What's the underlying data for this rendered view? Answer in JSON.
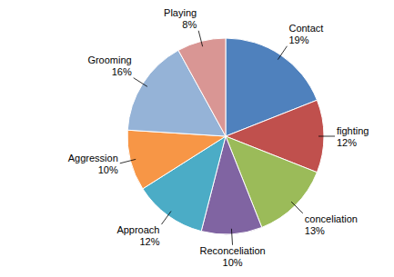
{
  "chart_data": {
    "type": "pie",
    "categories": [
      "Contact",
      "fighting",
      "conceliation",
      "Reconceliation",
      "Approach",
      "Aggression",
      "Grooming",
      "Playing"
    ],
    "values": [
      19,
      12,
      13,
      10,
      12,
      10,
      16,
      8
    ],
    "value_labels": [
      "19%",
      "12%",
      "13%",
      "10%",
      "12%",
      "10%",
      "16%",
      "8%"
    ],
    "colors": [
      "#4f81bd",
      "#c0504d",
      "#9bbb59",
      "#8064a2",
      "#4bacc6",
      "#f79646",
      "#95b3d7",
      "#d99694"
    ],
    "data_labels": true
  }
}
